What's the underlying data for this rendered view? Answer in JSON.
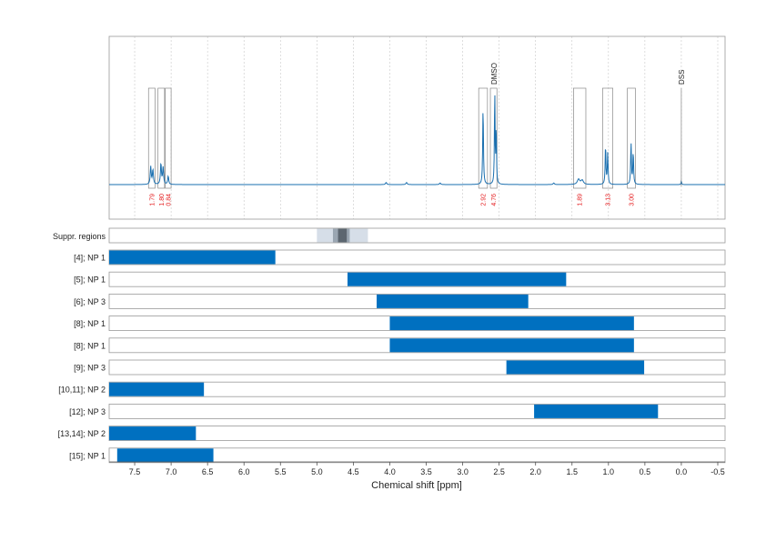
{
  "chart_data": {
    "type": "bar",
    "xlabel": "Chemical shift [ppm]",
    "xlim": [
      7.85,
      -0.6
    ],
    "x_reversed": true,
    "x_ticks": [
      "7.5",
      "7.0",
      "6.5",
      "6.0",
      "5.5",
      "5.0",
      "4.5",
      "4.0",
      "3.5",
      "3.0",
      "2.5",
      "2.0",
      "1.5",
      "1.0",
      "0.5",
      "0.0",
      "-0.5"
    ],
    "x_tick_values": [
      7.5,
      7.0,
      6.5,
      6.0,
      5.5,
      5.0,
      4.5,
      4.0,
      3.5,
      3.0,
      2.5,
      2.0,
      1.5,
      1.0,
      0.5,
      0.0,
      -0.5
    ],
    "grid": true,
    "colors": {
      "spectrum": "#1a6faf",
      "bar": "#0070c0",
      "annotation": "#e41a1c",
      "region_light": "#d6dee8",
      "region_mid": "#9aa6b2",
      "region_dark": "#5c6670",
      "frame": "#999999",
      "peak_box": "#888888",
      "grid": "#c8c8c8"
    },
    "spectrum": {
      "baseline": 0.02,
      "peaks": [
        {
          "center": 7.28,
          "height": 0.17,
          "width": 0.008
        },
        {
          "center": 7.25,
          "height": 0.14,
          "width": 0.008
        },
        {
          "center": 7.14,
          "height": 0.2,
          "width": 0.008
        },
        {
          "center": 7.11,
          "height": 0.16,
          "width": 0.008
        },
        {
          "center": 7.04,
          "height": 0.08,
          "width": 0.008
        },
        {
          "center": 2.72,
          "height": 0.75,
          "width": 0.006
        },
        {
          "center": 2.56,
          "height": 0.92,
          "width": 0.005
        },
        {
          "center": 2.54,
          "height": 0.55,
          "width": 0.005
        },
        {
          "center": 1.41,
          "height": 0.05,
          "width": 0.02
        },
        {
          "center": 1.36,
          "height": 0.04,
          "width": 0.02
        },
        {
          "center": 1.04,
          "height": 0.38,
          "width": 0.006
        },
        {
          "center": 1.01,
          "height": 0.3,
          "width": 0.006
        },
        {
          "center": 0.69,
          "height": 0.4,
          "width": 0.006
        },
        {
          "center": 0.66,
          "height": 0.31,
          "width": 0.006
        },
        {
          "center": 0.0,
          "height": 0.04,
          "width": 0.004
        },
        {
          "center": 4.05,
          "height": 0.02,
          "width": 0.01
        },
        {
          "center": 3.77,
          "height": 0.02,
          "width": 0.01
        },
        {
          "center": 3.31,
          "height": 0.015,
          "width": 0.01
        },
        {
          "center": 1.75,
          "height": 0.015,
          "width": 0.01
        }
      ]
    },
    "peak_boxes": [
      {
        "from": 7.31,
        "to": 7.22,
        "integral": "1.79"
      },
      {
        "from": 7.18,
        "to": 7.09,
        "integral": "1.80"
      },
      {
        "from": 7.08,
        "to": 7.0,
        "integral": "0.84"
      },
      {
        "from": 2.78,
        "to": 2.66,
        "integral": "2.92"
      },
      {
        "from": 2.62,
        "to": 2.53,
        "integral": "4.76"
      },
      {
        "from": 1.48,
        "to": 1.31,
        "integral": "1.89"
      },
      {
        "from": 1.08,
        "to": 0.94,
        "integral": "3.13"
      },
      {
        "from": 0.74,
        "to": 0.63,
        "integral": "3.00"
      }
    ],
    "reference_labels": [
      {
        "ppm": 2.57,
        "label": "DMSO"
      },
      {
        "ppm": 0.0,
        "label": "DSS"
      }
    ],
    "suppression_regions": {
      "label": "Suppr. regions",
      "bands": [
        {
          "from": 5.0,
          "to": 4.3,
          "level": "light"
        },
        {
          "from": 4.78,
          "to": 4.55,
          "level": "mid"
        },
        {
          "from": 4.71,
          "to": 4.59,
          "level": "dark"
        }
      ]
    },
    "ranges": [
      {
        "label": "[4]; NP 1",
        "from": 7.85,
        "to": 5.57
      },
      {
        "label": "[5]; NP 1",
        "from": 4.58,
        "to": 1.58
      },
      {
        "label": "[6]; NP 3",
        "from": 4.18,
        "to": 2.1
      },
      {
        "label": "[8]; NP 1",
        "from": 4.0,
        "to": 0.65
      },
      {
        "label": "[8]; NP 1",
        "from": 4.0,
        "to": 0.65
      },
      {
        "label": "[9]; NP 3",
        "from": 2.4,
        "to": 0.51
      },
      {
        "label": "[10,11]; NP 2",
        "from": 7.85,
        "to": 6.55
      },
      {
        "label": "[12]; NP 3",
        "from": 2.02,
        "to": 0.32
      },
      {
        "label": "[13,14]; NP 2",
        "from": 7.85,
        "to": 6.66
      },
      {
        "label": "[15]; NP 1",
        "from": 7.74,
        "to": 6.42
      }
    ]
  }
}
